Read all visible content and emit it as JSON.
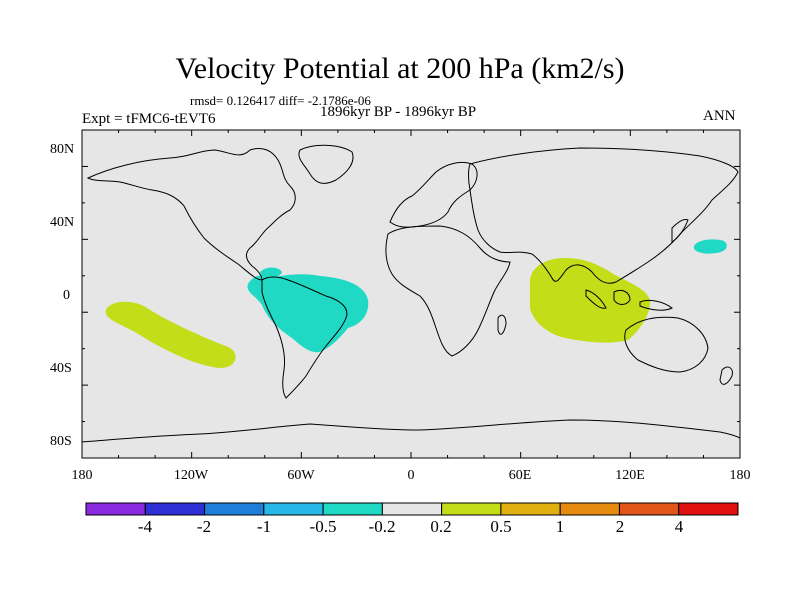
{
  "header": {
    "title": "Velocity Potential at 200 hPa (km2/s)",
    "stats": "rmsd= 0.126417 diff= -2.1786e-06",
    "experiment": "Expt = tFMC6-tEVT6",
    "period": "1896kyr BP - 1896kyr BP",
    "season": "ANN"
  },
  "axes": {
    "lat_labels": [
      "80N",
      "40N",
      "0",
      "40S",
      "80S"
    ],
    "lon_labels": [
      "180",
      "120W",
      "60W",
      "0",
      "60E",
      "120E",
      "180"
    ]
  },
  "colorbar": {
    "labels": [
      "-4",
      "-2",
      "-1",
      "-0.5",
      "-0.2",
      "0.2",
      "0.5",
      "1",
      "2",
      "4"
    ],
    "colors": [
      "#8a2be2",
      "#2f2fd6",
      "#1e7fd8",
      "#26b8e6",
      "#1fd9c4",
      "#e6e6e6",
      "#c3dd18",
      "#e0b010",
      "#e68a10",
      "#e05518",
      "#e01010"
    ]
  },
  "fields": {
    "land_color": "#e6e6e6",
    "ocean_color": "#e6e6e6",
    "negative_color": "#1fd9c4",
    "positive_color": "#c3dd18"
  }
}
